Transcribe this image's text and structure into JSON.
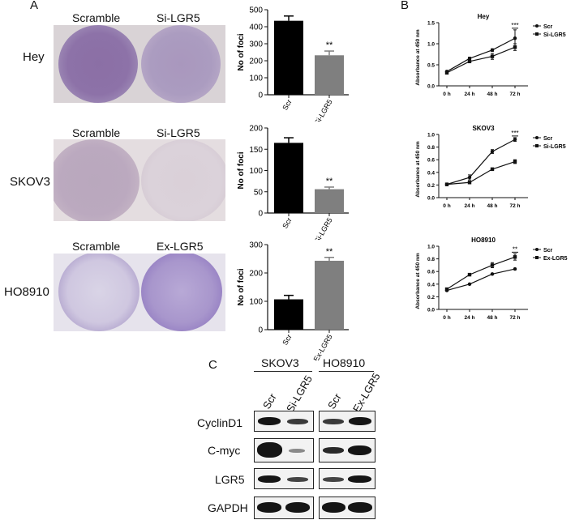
{
  "panels": {
    "A": "A",
    "B": "B",
    "C": "C"
  },
  "plates": [
    {
      "cell": "Hey",
      "left": "Scramble",
      "right": "Si-LGR5"
    },
    {
      "cell": "SKOV3",
      "left": "Scramble",
      "right": "Si-LGR5"
    },
    {
      "cell": "HO8910",
      "left": "Scramble",
      "right": "Ex-LGR5"
    }
  ],
  "bar_common": {
    "ylabel": "No of foci",
    "sig": "**",
    "color_scr": "#000000",
    "color_treat": "#7f7f7f"
  },
  "line_common": {
    "xlabel_ticks": [
      "0 h",
      "24 h",
      "48 h",
      "72 h"
    ],
    "ylabel": "Absorbance at 450 nm"
  },
  "chart_data": [
    {
      "type": "bar",
      "categories": [
        "Scr",
        "Si-LGR5"
      ],
      "values": [
        435,
        232
      ],
      "errors": [
        28,
        25
      ],
      "ylim": [
        0,
        500
      ],
      "yticks": [
        0,
        100,
        200,
        300,
        400,
        500
      ],
      "ylabel": "No of foci",
      "annotation": "**"
    },
    {
      "type": "bar",
      "categories": [
        "Scr",
        "Si-LGR5"
      ],
      "values": [
        165,
        56
      ],
      "errors": [
        12,
        5
      ],
      "ylim": [
        0,
        200
      ],
      "yticks": [
        0,
        50,
        100,
        150,
        200
      ],
      "ylabel": "No of foci",
      "annotation": "**"
    },
    {
      "type": "bar",
      "categories": [
        "Scr",
        "Ex-LGR5"
      ],
      "values": [
        107,
        243
      ],
      "errors": [
        14,
        12
      ],
      "ylim": [
        0,
        300
      ],
      "yticks": [
        0,
        100,
        200,
        300
      ],
      "ylabel": "No of foci",
      "annotation": "**"
    },
    {
      "type": "line",
      "title": "Hey",
      "x": [
        "0 h",
        "24 h",
        "48 h",
        "72 h"
      ],
      "ylabel": "Absorbance at 450 nm",
      "ylim": [
        0,
        1.5
      ],
      "yticks": [
        "0.0",
        "0.5",
        "1.0",
        "1.5"
      ],
      "annotation": "***",
      "series": [
        {
          "name": "Scr",
          "values": [
            0.34,
            0.65,
            0.85,
            1.13
          ],
          "errors": [
            0.02,
            0.03,
            0.03,
            0.2
          ]
        },
        {
          "name": "Si-LGR5",
          "values": [
            0.31,
            0.58,
            0.7,
            0.92
          ],
          "errors": [
            0.02,
            0.03,
            0.07,
            0.08
          ]
        }
      ]
    },
    {
      "type": "line",
      "title": "SKOV3",
      "x": [
        "0 h",
        "24 h",
        "48 h",
        "72 h"
      ],
      "ylabel": "Absorbance at 450 nm",
      "ylim": [
        0,
        1.0
      ],
      "yticks": [
        "0.0",
        "0.2",
        "0.4",
        "0.6",
        "0.8",
        "1.0"
      ],
      "annotation": "***",
      "series": [
        {
          "name": "Scr",
          "values": [
            0.21,
            0.32,
            0.73,
            0.92
          ],
          "errors": [
            0.02,
            0.04,
            0.03,
            0.03
          ]
        },
        {
          "name": "Si-LGR5",
          "values": [
            0.21,
            0.24,
            0.45,
            0.57
          ],
          "errors": [
            0.02,
            0.01,
            0.02,
            0.03
          ]
        }
      ]
    },
    {
      "type": "line",
      "title": "HO8910",
      "x": [
        "0 h",
        "24 h",
        "48 h",
        "72 h"
      ],
      "ylabel": "Absorbance at 450 nm",
      "ylim": [
        0,
        1.0
      ],
      "yticks": [
        "0.0",
        "0.2",
        "0.4",
        "0.6",
        "0.8",
        "1.0"
      ],
      "annotation": "**",
      "series": [
        {
          "name": "Scr",
          "values": [
            0.3,
            0.4,
            0.56,
            0.64
          ],
          "errors": [
            0.01,
            0.01,
            0.01,
            0.01
          ]
        },
        {
          "name": "Ex-LGR5",
          "values": [
            0.32,
            0.55,
            0.7,
            0.83
          ],
          "errors": [
            0.01,
            0.01,
            0.04,
            0.05
          ]
        }
      ]
    }
  ],
  "blot": {
    "groups": [
      "SKOV3",
      "HO8910"
    ],
    "lanes": [
      "Scr",
      "Si-LGR5",
      "Scr",
      "Ex-LGR5"
    ],
    "rows": [
      "CyclinD1",
      "C-myc",
      "LGR5",
      "GAPDH"
    ]
  }
}
